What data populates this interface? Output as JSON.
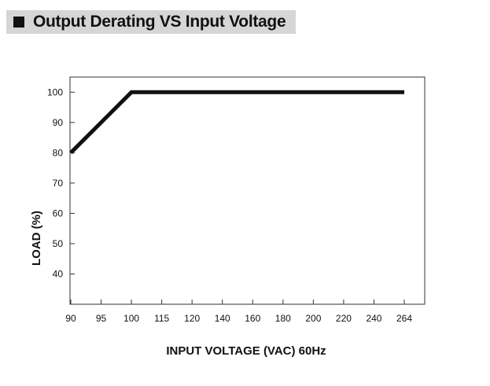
{
  "header": {
    "title": "Output Derating VS Input Voltage"
  },
  "chart_data": {
    "type": "line",
    "title": "Output Derating VS Input Voltage",
    "xlabel": "INPUT VOLTAGE (VAC) 60Hz",
    "ylabel": "LOAD (%)",
    "x_tick_labels": [
      "90",
      "95",
      "100",
      "115",
      "120",
      "140",
      "160",
      "180",
      "200",
      "220",
      "240",
      "264"
    ],
    "y_ticks": [
      40,
      50,
      60,
      70,
      80,
      90,
      100
    ],
    "ylim": [
      30,
      105
    ],
    "grid": false,
    "series": [
      {
        "x": [
          "90",
          "100",
          "264"
        ],
        "values": [
          80,
          100,
          100
        ]
      }
    ],
    "line_color": "#111111"
  }
}
